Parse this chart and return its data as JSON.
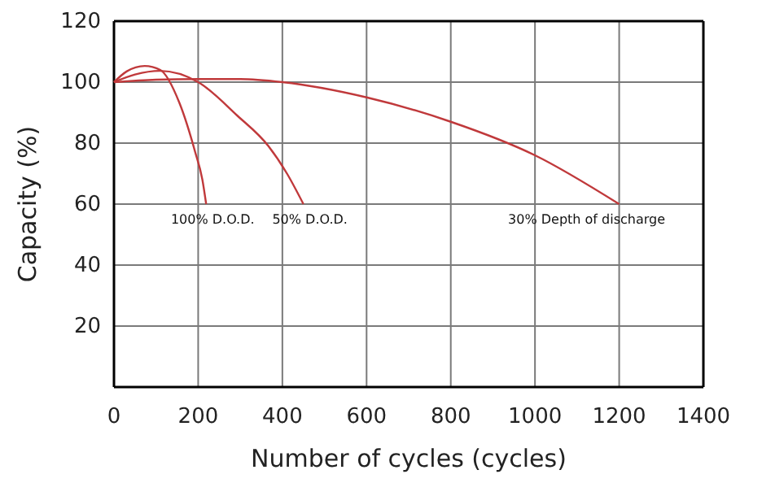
{
  "chart_data": {
    "type": "line",
    "xlabel": "Number of cycles (cycles)",
    "ylabel": "Capacity (%)",
    "xlim": [
      0,
      1400
    ],
    "xticks": [
      0,
      200,
      400,
      600,
      800,
      1000,
      1200,
      1400
    ],
    "ylim": [
      0,
      120
    ],
    "yticks": [
      {
        "value": 0,
        "label": null
      },
      20,
      40,
      60,
      80,
      100,
      120
    ],
    "grid": true,
    "marker": "none",
    "line_style": "solid",
    "series": [
      {
        "color": "#c0393b",
        "x": [
          0,
          30,
          73,
          110,
          156,
          193,
          210,
          219
        ],
        "values": [
          100,
          103.5,
          105.3,
          104,
          93,
          77,
          68,
          60
        ]
      },
      {
        "color": "#c0393b",
        "x": [
          0,
          50,
          109,
          200,
          293,
          367,
          411,
          450
        ],
        "values": [
          100,
          102.5,
          103.7,
          100,
          89,
          79,
          70,
          60
        ]
      },
      {
        "color": "#c0393b",
        "x": [
          0,
          100,
          200,
          300,
          400,
          600,
          800,
          1000,
          1200
        ],
        "values": [
          100,
          100.8,
          101,
          101,
          100,
          95,
          87,
          76,
          60
        ]
      }
    ],
    "annotations": [
      "100% D.O.D.",
      "50% D.O.D.",
      "30% Depth of discharge"
    ]
  }
}
